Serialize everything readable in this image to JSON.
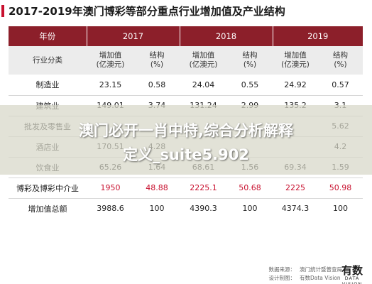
{
  "title": "2017-2019年澳门博彩等部分重点行业增加值及产业结构",
  "table": {
    "header_label": "年份",
    "years": [
      "2017",
      "2018",
      "2019"
    ],
    "sub_label": "行业分类",
    "sub_headers": [
      "增加值\n(亿澳元)",
      "结构\n(%)",
      "增加值\n(亿澳元)",
      "结构\n(%)",
      "增加值\n(亿澳元)",
      "结构\n(%)"
    ],
    "rows": [
      {
        "industry": "制造业",
        "cells": [
          "23.15",
          "0.58",
          "24.04",
          "0.55",
          "24.92",
          "0.57"
        ],
        "highlight": false
      },
      {
        "industry": "建筑业",
        "cells": [
          "149.01",
          "3.74",
          "131.24",
          "2.99",
          "135.2",
          "3.1"
        ],
        "highlight": false
      },
      {
        "industry": "批发及零售业",
        "cells": [
          "",
          "",
          "",
          "",
          "",
          "5.62"
        ],
        "highlight": false
      },
      {
        "industry": "酒店业",
        "cells": [
          "170.51",
          "4.28",
          "",
          "",
          "",
          "4.2"
        ],
        "highlight": false
      },
      {
        "industry": "饮食业",
        "cells": [
          "65.26",
          "1.64",
          "68.61",
          "1.56",
          "69.34",
          "1.59"
        ],
        "highlight": false
      },
      {
        "industry": "博彩及博彩中介业",
        "cells": [
          "1950",
          "48.88",
          "2225.1",
          "50.68",
          "2225",
          "50.98"
        ],
        "highlight": true
      },
      {
        "industry": "增加值总额",
        "cells": [
          "3988.6",
          "100",
          "4390.3",
          "100",
          "4374.3",
          "100"
        ],
        "highlight": false
      }
    ]
  },
  "overlay": {
    "line1": "澳门必开一肖中特,综合分析解释",
    "line2": "定义_suite5.902"
  },
  "footer": {
    "source_label": "数据来源：",
    "source_value": "澳门统计暨普查局",
    "design_label": "设计制图：",
    "design_value": "有数Data Vision",
    "logo_cn": "有数",
    "logo_en": "DATA VISION"
  }
}
